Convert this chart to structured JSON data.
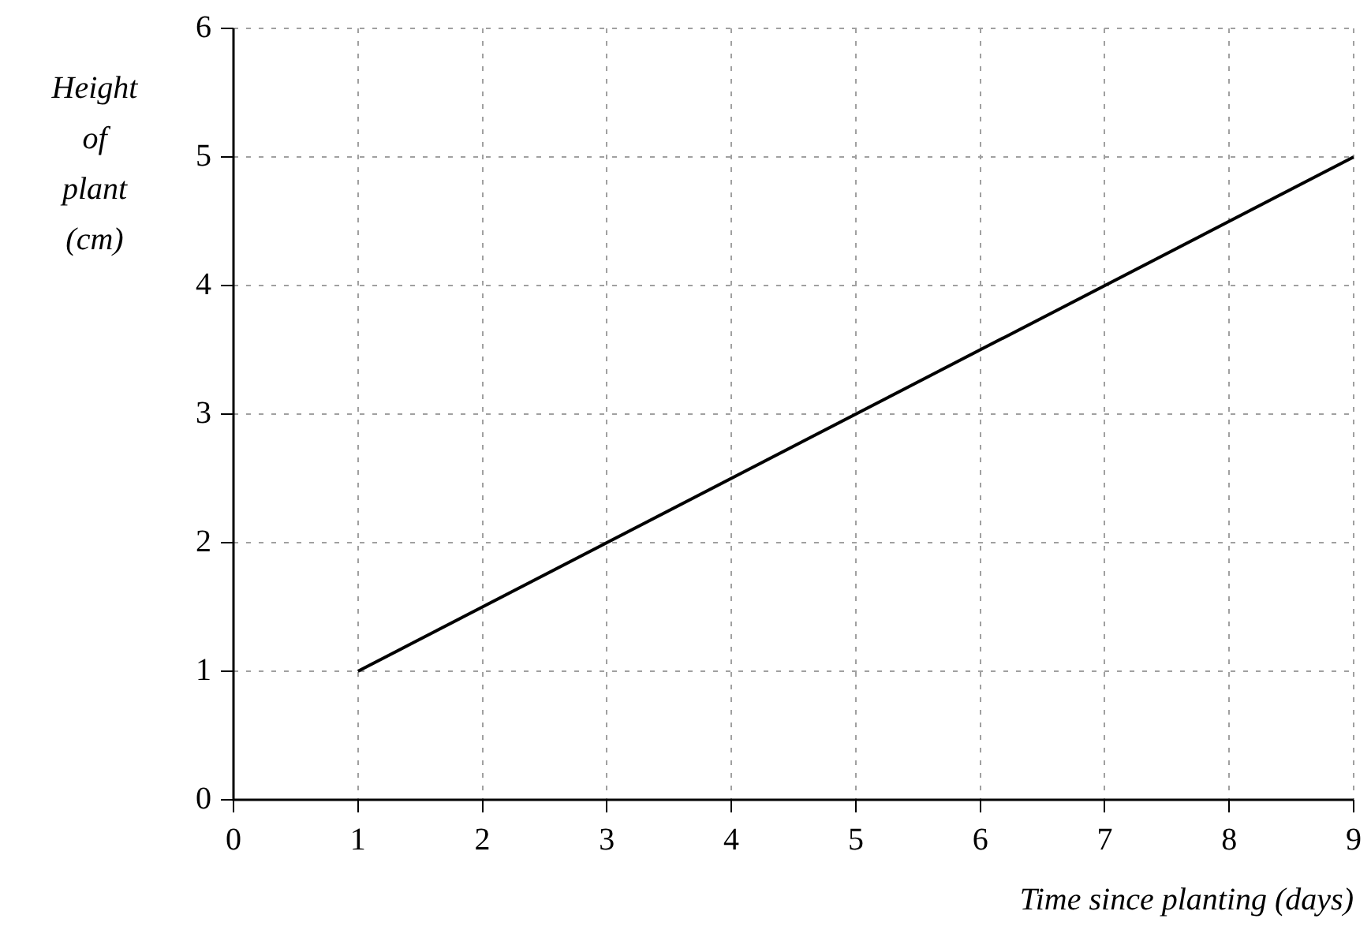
{
  "chart_data": {
    "type": "line",
    "xlabel": "Time since planting (days)",
    "ylabel": "Height of plant (cm)",
    "x": [
      1,
      9
    ],
    "series": [
      {
        "color": "#000000",
        "values": [
          1,
          5
        ]
      }
    ],
    "xlim": [
      0,
      9
    ],
    "xticks": [
      0,
      1,
      2,
      3,
      4,
      5,
      6,
      7,
      8,
      9
    ],
    "ylim": [
      0,
      6
    ],
    "yticks": [
      0,
      1,
      2,
      3,
      4,
      5,
      6
    ],
    "grid": true,
    "marker": "none",
    "line_style": "solid",
    "legend": false
  }
}
